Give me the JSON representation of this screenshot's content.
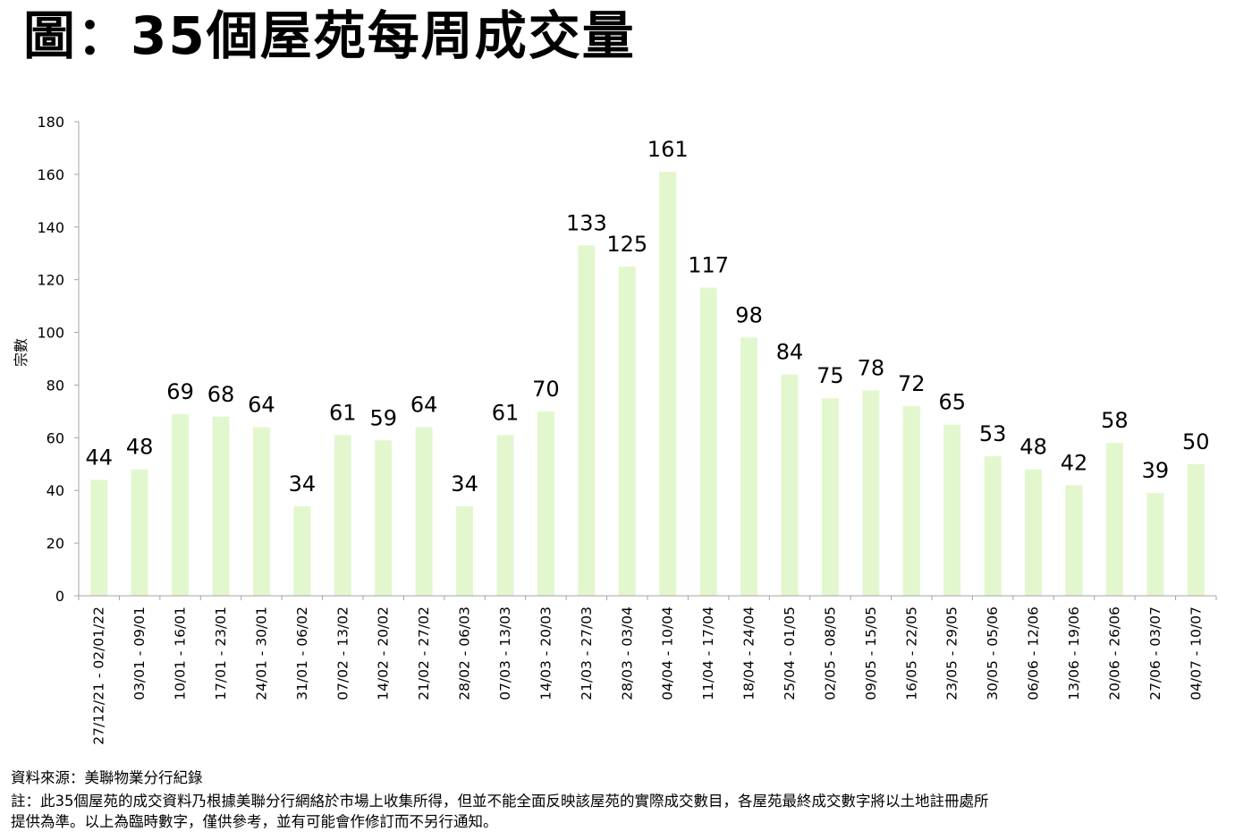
{
  "title": "圖：35個屋苑每周成交量",
  "source": "資料來源：美聯物業分行紀錄",
  "note_line_1": "註：此35個屋苑的成交資料乃根據美聯分行網絡於市場上收集所得，但並不能全面反映該屋苑的實際成交數目，各屋苑最終成交數字將以土地註冊處所",
  "note_line_2": "提供為準。以上為臨時數字，僅供參考，並有可能會作修訂而不另行通知。",
  "chart_data": {
    "type": "bar",
    "title": "圖：35個屋苑每周成交量",
    "xlabel": "",
    "ylabel": "宗數",
    "ylim": [
      0,
      180
    ],
    "yticks": [
      0,
      20,
      40,
      60,
      80,
      100,
      120,
      140,
      160,
      180
    ],
    "grid": false,
    "bar_color": "#e3f7cf",
    "categories": [
      "27/12/21 - 02/01/22",
      "03/01 - 09/01",
      "10/01 - 16/01",
      "17/01 - 23/01",
      "24/01 - 30/01",
      "31/01 - 06/02",
      "07/02 - 13/02",
      "14/02 - 20/02",
      "21/02 - 27/02",
      "28/02 - 06/03",
      "07/03 - 13/03",
      "14/03 - 20/03",
      "21/03 - 27/03",
      "28/03 - 03/04",
      "04/04 - 10/04",
      "11/04 - 17/04",
      "18/04 - 24/04",
      "25/04 - 01/05",
      "02/05 - 08/05",
      "09/05 - 15/05",
      "16/05 - 22/05",
      "23/05 - 29/05",
      "30/05 - 05/06",
      "06/06 - 12/06",
      "13/06 - 19/06",
      "20/06 - 26/06",
      "27/06 - 03/07",
      "04/07 - 10/07"
    ],
    "values": [
      44,
      48,
      69,
      68,
      64,
      34,
      61,
      59,
      64,
      34,
      61,
      70,
      133,
      125,
      161,
      117,
      98,
      84,
      75,
      78,
      72,
      65,
      53,
      48,
      42,
      58,
      39,
      50
    ]
  }
}
